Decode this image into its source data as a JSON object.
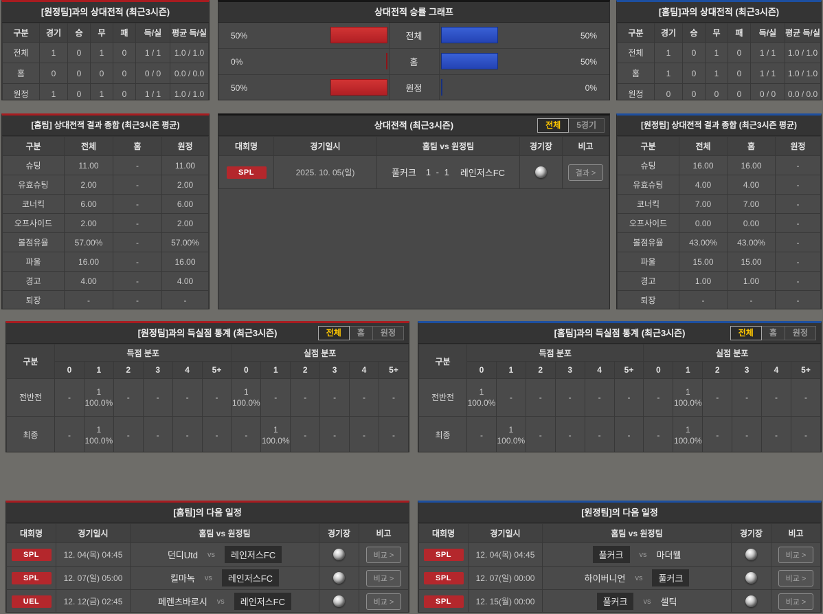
{
  "colors": {
    "accent_red": "#a81c20",
    "accent_blue": "#1d4fa0",
    "bar_red": "#c1272d",
    "bar_blue": "#2b50c8",
    "badge_red": "#b4272c",
    "tab_active_text": "#ffc800"
  },
  "h2h_vs_away": {
    "title": "[원정팀]과의 상대전적 (최근3시즌)",
    "headers": [
      "구분",
      "경기",
      "승",
      "무",
      "패",
      "득/실",
      "평균 득/실"
    ],
    "rows": [
      {
        "label": "전체",
        "cells": [
          "1",
          "0",
          "1",
          "0",
          "1 / 1",
          "1.0 / 1.0"
        ]
      },
      {
        "label": "홈",
        "cells": [
          "0",
          "0",
          "0",
          "0",
          "0 / 0",
          "0.0 / 0.0"
        ]
      },
      {
        "label": "원정",
        "cells": [
          "1",
          "0",
          "1",
          "0",
          "1 / 1",
          "1.0 / 1.0"
        ]
      }
    ]
  },
  "winrate_graph": {
    "title": "상대전적 승률 그래프",
    "rows": [
      {
        "label": "전체",
        "left_pct": "50%",
        "left_val": 50,
        "right_pct": "50%",
        "right_val": 50
      },
      {
        "label": "홈",
        "left_pct": "0%",
        "left_val": 0,
        "right_pct": "50%",
        "right_val": 50
      },
      {
        "label": "원정",
        "left_pct": "50%",
        "left_val": 50,
        "right_pct": "0%",
        "right_val": 0
      }
    ]
  },
  "h2h_vs_home": {
    "title": "[홈팀]과의 상대전적 (최근3시즌)",
    "headers": [
      "구분",
      "경기",
      "승",
      "무",
      "패",
      "득/실",
      "평균 득/실"
    ],
    "rows": [
      {
        "label": "전체",
        "cells": [
          "1",
          "0",
          "1",
          "0",
          "1 / 1",
          "1.0 / 1.0"
        ]
      },
      {
        "label": "홈",
        "cells": [
          "1",
          "0",
          "1",
          "0",
          "1 / 1",
          "1.0 / 1.0"
        ]
      },
      {
        "label": "원정",
        "cells": [
          "0",
          "0",
          "0",
          "0",
          "0 / 0",
          "0.0 / 0.0"
        ]
      }
    ]
  },
  "home_summary": {
    "title": "[홈팀] 상대전적 결과 종합 (최근3시즌 평균)",
    "headers": [
      "구분",
      "전체",
      "홈",
      "원정"
    ],
    "rows": [
      {
        "label": "슈팅",
        "cells": [
          "11.00",
          "-",
          "11.00"
        ]
      },
      {
        "label": "유효슈팅",
        "cells": [
          "2.00",
          "-",
          "2.00"
        ]
      },
      {
        "label": "코너킥",
        "cells": [
          "6.00",
          "-",
          "6.00"
        ]
      },
      {
        "label": "오프사이드",
        "cells": [
          "2.00",
          "-",
          "2.00"
        ]
      },
      {
        "label": "볼점유율",
        "cells": [
          "57.00%",
          "-",
          "57.00%"
        ]
      },
      {
        "label": "파울",
        "cells": [
          "16.00",
          "-",
          "16.00"
        ]
      },
      {
        "label": "경고",
        "cells": [
          "4.00",
          "-",
          "4.00"
        ]
      },
      {
        "label": "퇴장",
        "cells": [
          "-",
          "-",
          "-"
        ]
      }
    ]
  },
  "h2h_matches": {
    "title": "상대전적 (최근3시즌)",
    "tabs": [
      "전체",
      "5경기"
    ],
    "headers": [
      "대회명",
      "경기일시",
      "홈팀  vs  원정팀",
      "경기장",
      "비고"
    ],
    "rows": [
      {
        "league": "SPL",
        "datetime": "2025. 10. 05(일)",
        "home": "풀커크",
        "score": "1 - 1",
        "away": "레인저스FC",
        "action": "결과 >"
      }
    ]
  },
  "away_summary": {
    "title": "[원정팀] 상대전적 결과 종합 (최근3시즌 평균)",
    "headers": [
      "구분",
      "전체",
      "홈",
      "원정"
    ],
    "rows": [
      {
        "label": "슈팅",
        "cells": [
          "16.00",
          "16.00",
          "-"
        ]
      },
      {
        "label": "유효슈팅",
        "cells": [
          "4.00",
          "4.00",
          "-"
        ]
      },
      {
        "label": "코너킥",
        "cells": [
          "7.00",
          "7.00",
          "-"
        ]
      },
      {
        "label": "오프사이드",
        "cells": [
          "0.00",
          "0.00",
          "-"
        ]
      },
      {
        "label": "볼점유율",
        "cells": [
          "43.00%",
          "43.00%",
          "-"
        ]
      },
      {
        "label": "파울",
        "cells": [
          "15.00",
          "15.00",
          "-"
        ]
      },
      {
        "label": "경고",
        "cells": [
          "1.00",
          "1.00",
          "-"
        ]
      },
      {
        "label": "퇴장",
        "cells": [
          "-",
          "-",
          "-"
        ]
      }
    ]
  },
  "goal_stats_left": {
    "title": "[원정팀]과의 득실점 통계 (최근3시즌)",
    "tabs": [
      "전체",
      "홈",
      "원정"
    ],
    "col_label": "구분",
    "group_headers": [
      "득점 분포",
      "실점 분포"
    ],
    "bins": [
      "0",
      "1",
      "2",
      "3",
      "4",
      "5+"
    ],
    "rows": [
      {
        "label": "전반전",
        "scored": [
          "-",
          "1\n100.0%",
          "-",
          "-",
          "-",
          "-"
        ],
        "conceded": [
          "1\n100.0%",
          "-",
          "-",
          "-",
          "-",
          "-"
        ]
      },
      {
        "label": "최종",
        "scored": [
          "-",
          "1\n100.0%",
          "-",
          "-",
          "-",
          "-"
        ],
        "conceded": [
          "-",
          "1\n100.0%",
          "-",
          "-",
          "-",
          "-"
        ]
      }
    ]
  },
  "goal_stats_right": {
    "title": "[홈팀]과의 득실점 통계 (최근3시즌)",
    "tabs": [
      "전체",
      "홈",
      "원정"
    ],
    "col_label": "구분",
    "group_headers": [
      "득점 분포",
      "실점 분포"
    ],
    "bins": [
      "0",
      "1",
      "2",
      "3",
      "4",
      "5+"
    ],
    "rows": [
      {
        "label": "전반전",
        "scored": [
          "1\n100.0%",
          "-",
          "-",
          "-",
          "-",
          "-"
        ],
        "conceded": [
          "-",
          "1\n100.0%",
          "-",
          "-",
          "-",
          "-"
        ]
      },
      {
        "label": "최종",
        "scored": [
          "-",
          "1\n100.0%",
          "-",
          "-",
          "-",
          "-"
        ],
        "conceded": [
          "-",
          "1\n100.0%",
          "-",
          "-",
          "-",
          "-"
        ]
      }
    ]
  },
  "schedule_home": {
    "title": "[홈팀]의 다음 일정",
    "headers": [
      "대회명",
      "경기일시",
      "홈팀  vs  원정팀",
      "경기장",
      "비고"
    ],
    "vs_label": "vs",
    "rows": [
      {
        "league": "SPL",
        "datetime": "12. 04(목) 04:45",
        "home": "던디Utd",
        "away": "레인저스FC",
        "action": "비교 >"
      },
      {
        "league": "SPL",
        "datetime": "12. 07(일) 05:00",
        "home": "킬마녹",
        "away": "레인저스FC",
        "action": "비교 >"
      },
      {
        "league": "UEL",
        "datetime": "12. 12(금) 02:45",
        "home": "페렌츠바로시",
        "away": "레인저스FC",
        "action": "비교 >"
      }
    ]
  },
  "schedule_away": {
    "title": "[원정팀]의 다음 일정",
    "headers": [
      "대회명",
      "경기일시",
      "홈팀  vs  원정팀",
      "경기장",
      "비고"
    ],
    "vs_label": "vs",
    "rows": [
      {
        "league": "SPL",
        "datetime": "12. 04(목) 04:45",
        "home": "풀커크",
        "away": "마더웰",
        "action": "비교 >"
      },
      {
        "league": "SPL",
        "datetime": "12. 07(일) 00:00",
        "home": "하이버니언",
        "away": "풀커크",
        "action": "비교 >"
      },
      {
        "league": "SPL",
        "datetime": "12. 15(월) 00:00",
        "home": "풀커크",
        "away": "셀틱",
        "action": "비교 >"
      }
    ]
  }
}
